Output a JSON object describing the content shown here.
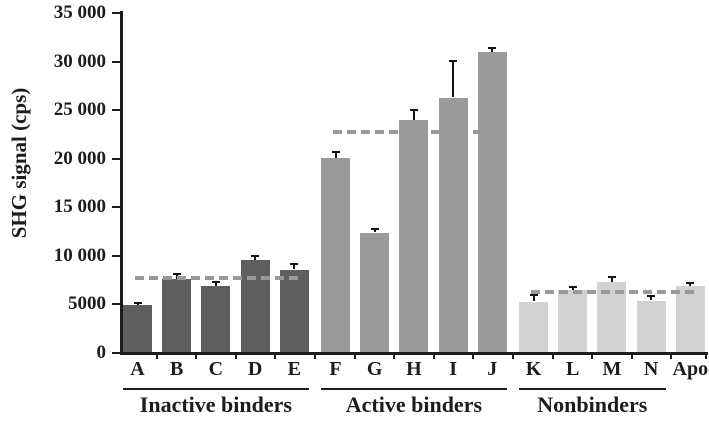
{
  "chart_data": {
    "type": "bar",
    "title": "",
    "xlabel": "",
    "ylabel": "SHG signal (cps)",
    "ylim": [
      0,
      35000
    ],
    "grid": false,
    "legend": "none",
    "yticks": [
      {
        "value": 35000,
        "label": "35 000"
      },
      {
        "value": 30000,
        "label": "30 000"
      },
      {
        "value": 25000,
        "label": "25 000"
      },
      {
        "value": 20000,
        "label": "20 000"
      },
      {
        "value": 15000,
        "label": "15 000"
      },
      {
        "value": 10000,
        "label": "10 000"
      },
      {
        "value": 5000,
        "label": "5000"
      },
      {
        "value": 0,
        "label": "0"
      }
    ],
    "categories": [
      "A",
      "B",
      "C",
      "D",
      "E",
      "F",
      "G",
      "H",
      "I",
      "J",
      "K",
      "L",
      "M",
      "N",
      "Apo"
    ],
    "values": [
      4900,
      7600,
      6900,
      9600,
      8600,
      20100,
      12400,
      24000,
      26300,
      31000,
      5300,
      6500,
      7300,
      5400,
      6900
    ],
    "errors_plus": [
      150,
      450,
      350,
      300,
      450,
      450,
      300,
      950,
      3700,
      350,
      550,
      200,
      450,
      350,
      200
    ],
    "groups": [
      {
        "label": "Inactive binders",
        "bars": [
          0,
          4
        ],
        "underline": [
          0,
          4
        ],
        "dash": [
          0,
          4
        ],
        "color": "#5e5e5e",
        "threshold": 7700
      },
      {
        "label": "Active binders",
        "bars": [
          5,
          9
        ],
        "underline": [
          5,
          9
        ],
        "dash": [
          5,
          9
        ],
        "color": "#9a9a9a",
        "threshold": 22800
      },
      {
        "label": "Nonbinders",
        "bars": [
          10,
          14
        ],
        "underline": [
          10,
          13
        ],
        "dash": [
          10,
          14
        ],
        "color": "#d2d2d2",
        "threshold": 6300
      }
    ],
    "style": {
      "axis_color": "#1c1c1c",
      "dash_color": "#999999",
      "error_color": "#141414",
      "text_color": "#1c1c1c",
      "background": "#ffffff"
    }
  }
}
